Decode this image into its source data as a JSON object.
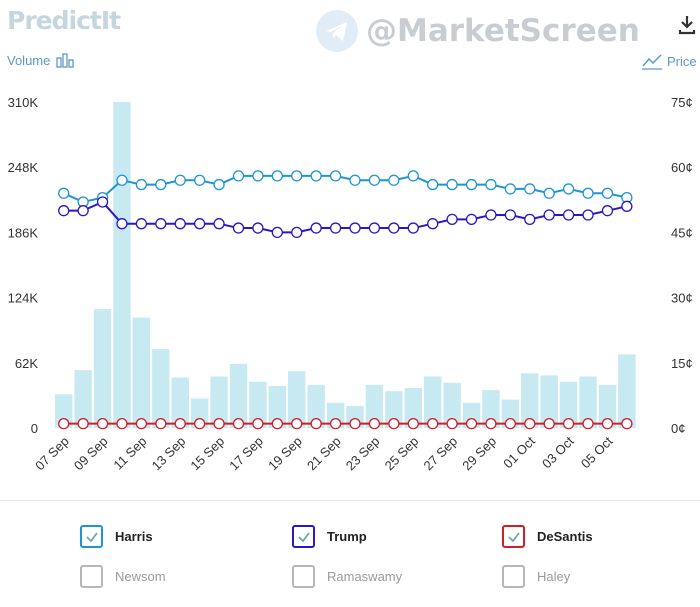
{
  "header": {
    "brand": "PredictIt",
    "watermark": "@MarketScreen",
    "volume_label": "Volume",
    "price_label": "Price"
  },
  "colors": {
    "Harris": "#1f95d2",
    "Trump": "#2c17c6",
    "DeSantis": "#d01f2b",
    "volume_bar": "#c7e9f1",
    "axis_text": "#333333"
  },
  "chart_data": {
    "type": "bar+line",
    "x": [
      "07 Sep",
      "08 Sep",
      "09 Sep",
      "10 Sep",
      "11 Sep",
      "12 Sep",
      "13 Sep",
      "14 Sep",
      "15 Sep",
      "16 Sep",
      "17 Sep",
      "18 Sep",
      "19 Sep",
      "20 Sep",
      "21 Sep",
      "22 Sep",
      "23 Sep",
      "24 Sep",
      "25 Sep",
      "26 Sep",
      "27 Sep",
      "28 Sep",
      "29 Sep",
      "30 Sep",
      "01 Oct",
      "02 Oct",
      "03 Oct",
      "04 Oct",
      "05 Oct",
      "06 Oct",
      "07 Oct"
    ],
    "x_tick_labels": [
      "07 Sep",
      "09 Sep",
      "11 Sep",
      "13 Sep",
      "15 Sep",
      "17 Sep",
      "19 Sep",
      "21 Sep",
      "23 Sep",
      "25 Sep",
      "27 Sep",
      "29 Sep",
      "01 Oct",
      "03 Oct",
      "05 Oct"
    ],
    "volume": {
      "axis": "left",
      "ylim": [
        0,
        310000
      ],
      "tick_labels": [
        "0",
        "62K",
        "124K",
        "186K",
        "248K",
        "310K"
      ],
      "values": [
        32000,
        55000,
        113000,
        310000,
        105000,
        75000,
        48000,
        28000,
        49000,
        61000,
        44000,
        40000,
        54000,
        41000,
        24000,
        21000,
        41000,
        35000,
        38000,
        49000,
        43000,
        24000,
        36000,
        27000,
        52000,
        50000,
        44000,
        49000,
        41000,
        70000,
        0
      ]
    },
    "price": {
      "axis": "right",
      "ylim": [
        0,
        75
      ],
      "tick_labels": [
        "0¢",
        "15¢",
        "30¢",
        "45¢",
        "60¢",
        "75¢"
      ],
      "series": [
        {
          "name": "Harris",
          "values": [
            54,
            52,
            53,
            57,
            56,
            56,
            57,
            57,
            56,
            58,
            58,
            58,
            58,
            58,
            58,
            57,
            57,
            57,
            58,
            56,
            56,
            56,
            56,
            55,
            55,
            54,
            55,
            54,
            54,
            53,
            null
          ]
        },
        {
          "name": "Trump",
          "values": [
            50,
            50,
            52,
            47,
            47,
            47,
            47,
            47,
            47,
            46,
            46,
            45,
            45,
            46,
            46,
            46,
            46,
            46,
            46,
            47,
            48,
            48,
            49,
            49,
            48,
            49,
            49,
            49,
            50,
            51,
            null
          ]
        },
        {
          "name": "DeSantis",
          "values": [
            1,
            1,
            1,
            1,
            1,
            1,
            1,
            1,
            1,
            1,
            1,
            1,
            1,
            1,
            1,
            1,
            1,
            1,
            1,
            1,
            1,
            1,
            1,
            1,
            1,
            1,
            1,
            1,
            1,
            1,
            null
          ]
        }
      ]
    }
  },
  "legend": {
    "items": [
      {
        "label": "Harris",
        "checked": true,
        "color": "#1f95d2"
      },
      {
        "label": "Trump",
        "checked": true,
        "color": "#2c17c6"
      },
      {
        "label": "DeSantis",
        "checked": true,
        "color": "#d01f2b"
      },
      {
        "label": "Newsom",
        "checked": false,
        "color": "#9a9a9a"
      },
      {
        "label": "Ramaswamy",
        "checked": false,
        "color": "#9a9a9a"
      },
      {
        "label": "Haley",
        "checked": false,
        "color": "#9a9a9a"
      }
    ]
  }
}
